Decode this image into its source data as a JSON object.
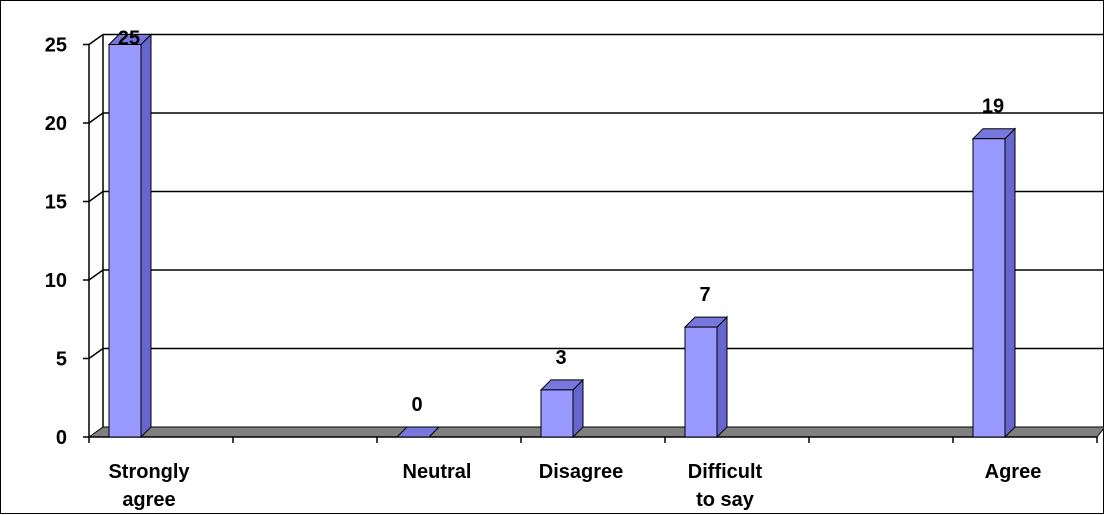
{
  "chart_data": {
    "type": "bar",
    "categories": [
      [
        "Strongly",
        "agree"
      ],
      [],
      [
        "Neutral"
      ],
      [
        "Disagree"
      ],
      [
        "Difficult",
        "to say"
      ],
      [],
      [
        "Agree"
      ]
    ],
    "values": [
      25,
      null,
      0,
      3,
      7,
      null,
      19
    ],
    "data_labels": [
      "25",
      "",
      "0",
      "3",
      "7",
      "",
      "19"
    ],
    "y_ticks": [
      0,
      5,
      10,
      15,
      20,
      25
    ],
    "ylim": [
      0,
      25
    ],
    "grid": true,
    "legend": "none",
    "title": "",
    "xlabel": "",
    "ylabel": "",
    "colors": {
      "bar_front": "#9999ff",
      "bar_side": "#6666cc",
      "bar_top": "#7777dd",
      "floor": "#808080",
      "grid": "#000000",
      "axis": "#000000"
    }
  }
}
